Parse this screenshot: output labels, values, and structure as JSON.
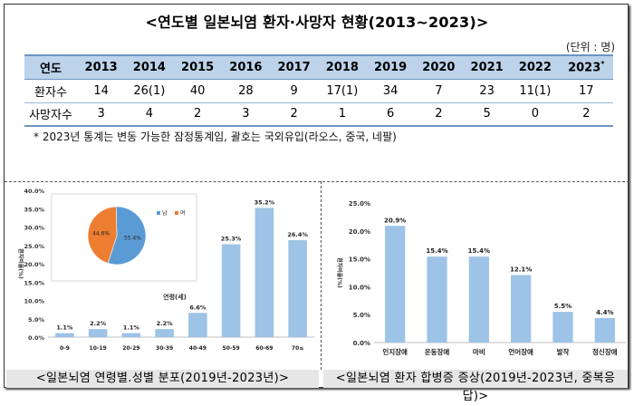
{
  "title": "<연도별 일본뇌염 환자·사망자 현황(2013~2023)>",
  "unit": "(단위 : 명)",
  "table": {
    "header_label": "연도",
    "years": [
      "2013",
      "2014",
      "2015",
      "2016",
      "2017",
      "2018",
      "2019",
      "2020",
      "2021",
      "2022",
      "2023"
    ],
    "last_year_mark": "*",
    "rows": [
      {
        "label": "환자수",
        "values": [
          "14",
          "26(1)",
          "40",
          "28",
          "9",
          "17(1)",
          "34",
          "7",
          "23",
          "11(1)",
          "17"
        ]
      },
      {
        "label": "사망자수",
        "values": [
          "3",
          "4",
          "2",
          "3",
          "2",
          "1",
          "6",
          "2",
          "5",
          "0",
          "2"
        ]
      }
    ]
  },
  "note": "* 2023년 통계는 변동 가능한 잠정통계임, 괄호는 국외유입(라오스, 중국, 네팔)",
  "captions": {
    "left": "<일본뇌염 연령별.성별 분포(2019년-2023년)>",
    "right": "<일본뇌염 환자 합병증 증상(2019년-2023년, 중복응답)>"
  },
  "chart_data": [
    {
      "type": "bar",
      "categories": [
        "0-9",
        "10-19",
        "20-29",
        "30-39",
        "40-49",
        "50-59",
        "60-69",
        "70≤"
      ],
      "values": [
        1.1,
        2.2,
        1.1,
        2.2,
        6.6,
        25.3,
        35.2,
        26.4
      ],
      "data_labels": [
        "1.1%",
        "2.2%",
        "1.1%",
        "2.2%",
        "6.6%",
        "25.3%",
        "35.2%",
        "26.4%"
      ],
      "xlabel": "연령(세)",
      "ylabel": "환자비율(%)",
      "ylim": [
        0,
        40
      ],
      "yticks": [
        "0.0%",
        "5.0%",
        "10.0%",
        "15.0%",
        "20.0%",
        "25.0%",
        "30.0%",
        "35.0%",
        "40.0%"
      ],
      "grid": false,
      "bar_color": "#9dc3e6"
    },
    {
      "type": "pie",
      "labels": [
        "남",
        "여"
      ],
      "values": [
        55.4,
        44.6
      ],
      "data_labels": [
        "55.4%",
        "44.6%"
      ],
      "colors": [
        "#5b9bd5",
        "#ed7d31"
      ],
      "legend": "top-right"
    },
    {
      "type": "bar",
      "categories": [
        "인지장애",
        "운동장애",
        "마비",
        "언어장애",
        "발작",
        "정신장애"
      ],
      "values": [
        20.9,
        15.4,
        15.4,
        12.1,
        5.5,
        4.4
      ],
      "data_labels": [
        "20.9%",
        "15.4%",
        "15.4%",
        "12.1%",
        "5.5%",
        "4.4%"
      ],
      "ylabel": "환자비율(%)",
      "ylim": [
        0,
        25
      ],
      "yticks": [
        "0.0%",
        "5.0%",
        "10.0%",
        "15.0%",
        "20.0%",
        "25.0%"
      ],
      "grid": false,
      "bar_color": "#9dc3e6"
    }
  ]
}
